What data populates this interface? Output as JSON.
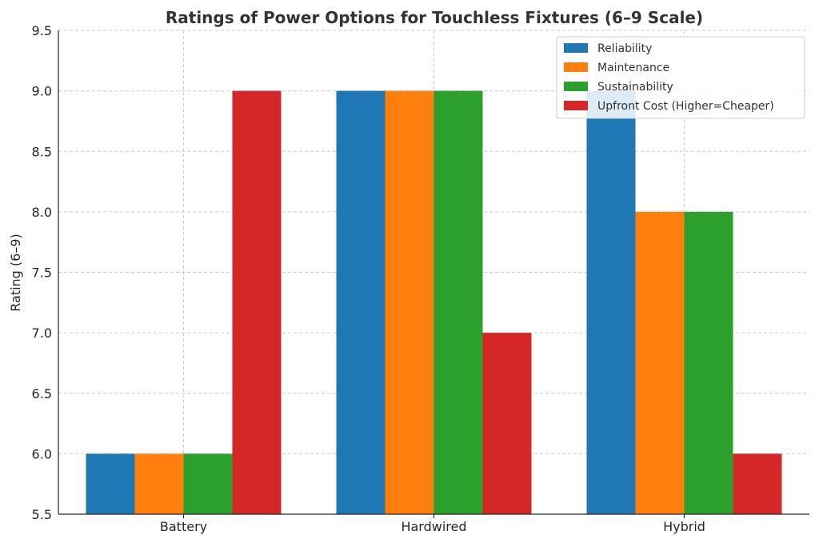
{
  "chart_data": {
    "type": "bar",
    "title": "Ratings of Power Options for Touchless Fixtures (6–9 Scale)",
    "xlabel": "",
    "ylabel": "Rating (6–9)",
    "categories": [
      "Battery",
      "Hardwired",
      "Hybrid"
    ],
    "series": [
      {
        "name": "Reliability",
        "color": "#1f77b4",
        "values": [
          6,
          9,
          9
        ]
      },
      {
        "name": "Maintenance",
        "color": "#ff7f0e",
        "values": [
          6,
          9,
          8
        ]
      },
      {
        "name": "Sustainability",
        "color": "#2ca02c",
        "values": [
          6,
          9,
          8
        ]
      },
      {
        "name": "Upfront Cost (Higher=Cheaper)",
        "color": "#d62728",
        "values": [
          9,
          7,
          6
        ]
      }
    ],
    "ylim": [
      5.5,
      9.5
    ],
    "yticks": [
      "5.5",
      "6.0",
      "6.5",
      "7.0",
      "7.5",
      "8.0",
      "8.5",
      "9.0",
      "9.5"
    ],
    "grid": true,
    "legend_position": "top-right"
  }
}
